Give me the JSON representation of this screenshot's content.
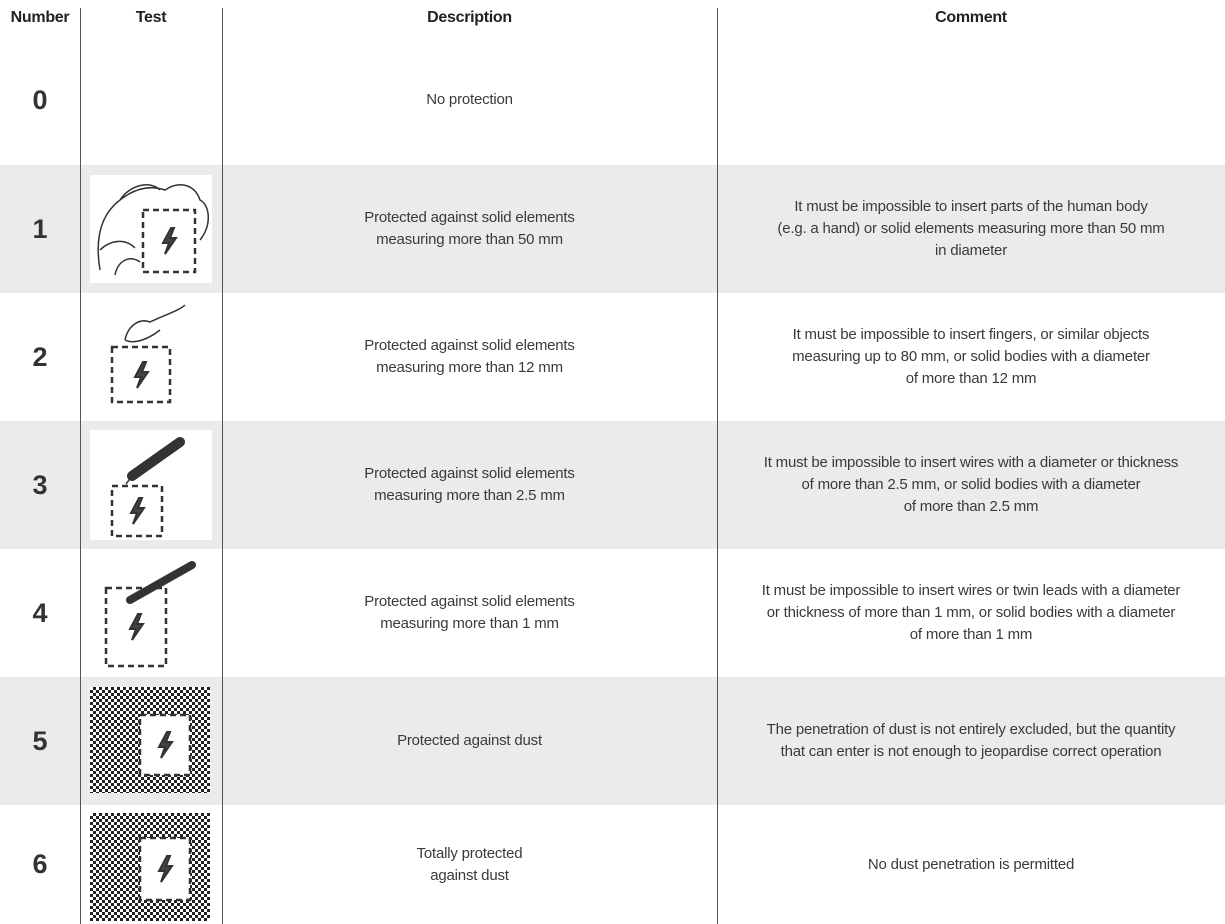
{
  "table": {
    "header": [
      "Number",
      "Test",
      "Description",
      "Comment"
    ],
    "rows": [
      {
        "number": 0,
        "description": [
          "No protection"
        ]
      },
      {
        "number": 1,
        "description": [
          "Protected against solid elements",
          "measuring more than 50 mm"
        ],
        "comment": [
          "It must be impossible to insert parts of the human body",
          "(e.g. a hand) or solid elements measuring more than 50 mm",
          "in diameter"
        ]
      },
      {
        "number": 2,
        "description": [
          "Protected against solid elements",
          "measuring more than 12 mm"
        ],
        "comment": [
          "It must be impossible to insert fingers, or similar objects",
          "measuring up to 80 mm, or solid bodies with a diameter",
          "of more than 12 mm"
        ]
      },
      {
        "number": 3,
        "description": [
          "Protected against solid elements",
          "measuring more than 2.5 mm"
        ],
        "comment": [
          "It must be impossible to insert wires with a diameter or thickness",
          "of more than 2.5 mm, or solid bodies with a diameter",
          "of more than 2.5 mm"
        ]
      },
      {
        "number": 4,
        "description": [
          "Protected against solid elements",
          "measuring more than 1 mm"
        ],
        "comment": [
          "It must be impossible to insert wires or twin leads with a diameter",
          "or thickness of more than 1 mm, or solid bodies with a diameter",
          "of more than 1 mm"
        ]
      },
      {
        "number": 5,
        "description": [
          "Protected against dust"
        ],
        "comment": [
          "The penetration of dust is not entirely excluded, but the quantity",
          "that can enter is not enough to jeopardise correct operation"
        ]
      },
      {
        "number": 6,
        "description": [
          "Totally protected",
          "against dust"
        ],
        "comment": [
          "No dust penetration is permitted"
        ]
      }
    ]
  }
}
